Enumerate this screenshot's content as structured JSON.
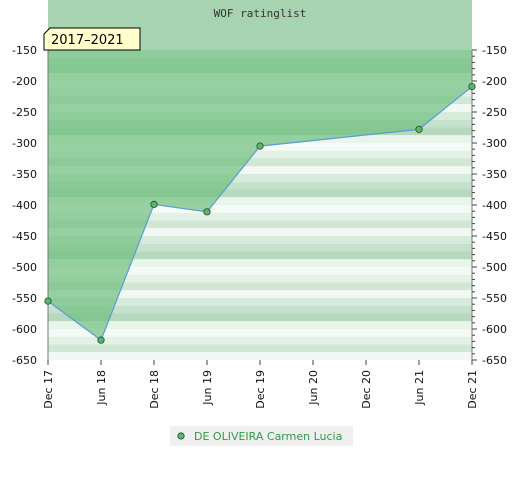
{
  "chart_data": {
    "type": "area",
    "title": "WOF ratinglist",
    "badge": "2017–2021",
    "xlabel": "",
    "ylabel": "",
    "ylim": [
      -650,
      -150
    ],
    "y_ticks": [
      -150,
      -200,
      -250,
      -300,
      -350,
      -400,
      -450,
      -500,
      -550,
      -600,
      -650
    ],
    "x_ticks": [
      "Dec 17",
      "Jun 18",
      "Dec 18",
      "Jun 19",
      "Dec 19",
      "Jun 20",
      "Dec 20",
      "Jun 21",
      "Dec 21"
    ],
    "series": [
      {
        "name": "DE OLIVEIRA Carmen Lucia",
        "points": [
          {
            "x": "Dec 17",
            "y": -555
          },
          {
            "x": "Jun 18",
            "y": -618
          },
          {
            "x": "Dec 18",
            "y": -399
          },
          {
            "x": "Jun 19",
            "y": -411
          },
          {
            "x": "Dec 19",
            "y": -305
          },
          {
            "x": "Jun 21",
            "y": -278
          },
          {
            "x": "Dec 21",
            "y": -209
          }
        ]
      }
    ],
    "legend": {
      "position": "bottom-center"
    },
    "grid": true,
    "colors": {
      "line": "#5b9bd5",
      "area": "#6fbf7f",
      "marker": "#5cb46e",
      "title_band": "#a7d3b1",
      "bands_dark": "#c2e0c8",
      "bands_light": "#f2f8f3",
      "legend_text": "#2e9a48",
      "badge_bg": "#ffffcc"
    }
  }
}
